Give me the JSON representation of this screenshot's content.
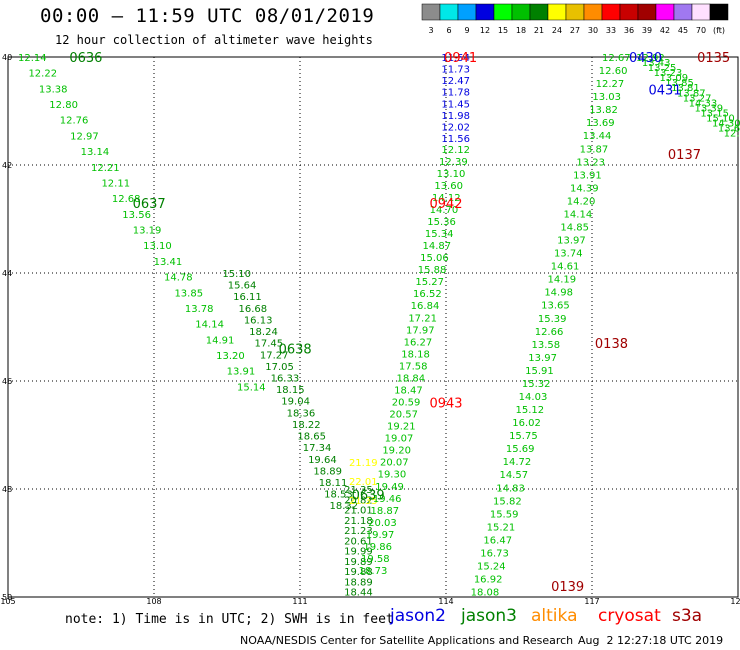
{
  "header": {
    "title": "00:00 – 11:59 UTC 08/01/2019",
    "subtitle": "12 hour collection of altimeter wave heights"
  },
  "colorbar": {
    "labels": [
      "3",
      "6",
      "9",
      "12",
      "15",
      "18",
      "21",
      "24",
      "27",
      "30",
      "33",
      "36",
      "39",
      "42",
      "45",
      "70",
      "(ft)"
    ],
    "colors": [
      "#8c8c8c",
      "#00e8e8",
      "#00a0ff",
      "#0000e0",
      "#00ff00",
      "#00c000",
      "#008000",
      "#ffff00",
      "#e8c000",
      "#ff8c00",
      "#ff0000",
      "#c80000",
      "#a00000",
      "#ff00ff",
      "#a078f0",
      "#ffe0ff",
      "#000000"
    ]
  },
  "map": {
    "lon_ticks": [
      "105",
      "108",
      "111",
      "114",
      "117",
      "120"
    ],
    "lat_ticks": [
      "40",
      "42",
      "44",
      "46",
      "48",
      "50"
    ],
    "grid": "dotted"
  },
  "chart_data": {
    "type": "scatter",
    "xlabel": "",
    "ylabel": "",
    "xlim": [
      105,
      120
    ],
    "ylim": [
      50,
      40
    ],
    "series": [
      {
        "name": "jason2",
        "color": "#0000e0"
      },
      {
        "name": "jason3",
        "color": "#008000"
      },
      {
        "name": "altika",
        "color": "#ff8c00"
      },
      {
        "name": "cryosat",
        "color": "#ff0000"
      },
      {
        "name": "s3a",
        "color": "#a00000"
      }
    ],
    "time_labels": [
      {
        "text": "0636",
        "x": 106.6,
        "y": 40.0,
        "color": "#008000"
      },
      {
        "text": "0637",
        "x": 107.9,
        "y": 42.7,
        "color": "#008000"
      },
      {
        "text": "0638",
        "x": 110.9,
        "y": 45.4,
        "color": "#008000"
      },
      {
        "text": "0639",
        "x": 112.4,
        "y": 48.1,
        "color": "#008000"
      },
      {
        "text": "0941",
        "x": 114.3,
        "y": 40.0,
        "color": "#ff0000"
      },
      {
        "text": "0942",
        "x": 114.0,
        "y": 42.7,
        "color": "#ff0000"
      },
      {
        "text": "0943",
        "x": 114.0,
        "y": 46.4,
        "color": "#ff0000"
      },
      {
        "text": "0430",
        "x": 118.1,
        "y": 40.0,
        "color": "#0000e0"
      },
      {
        "text": "0431",
        "x": 118.5,
        "y": 40.6,
        "color": "#0000e0"
      },
      {
        "text": "0135",
        "x": 119.5,
        "y": 40.0,
        "color": "#a00000"
      },
      {
        "text": "0137",
        "x": 118.9,
        "y": 41.8,
        "color": "#a00000"
      },
      {
        "text": "0138",
        "x": 117.4,
        "y": 45.3,
        "color": "#a00000"
      },
      {
        "text": "0139",
        "x": 116.5,
        "y": 49.8,
        "color": "#a00000"
      }
    ],
    "tracks": [
      {
        "satellite": "jason3",
        "x0": 105.5,
        "y0": 40.0,
        "x1": 110.0,
        "y1": 46.1,
        "color": "#00c000",
        "values": [
          "12.14",
          "12.22",
          "13.38",
          "12.80",
          "12.76",
          "12.97",
          "13.14",
          "12.21",
          "12.11",
          "12.68",
          "13.56",
          "13.19",
          "13.10",
          "13.41",
          "14.78",
          "13.85",
          "13.78",
          "14.14",
          "14.91",
          "13.20",
          "13.91",
          "15.14"
        ]
      },
      {
        "satellite": "jason3",
        "x0": 109.7,
        "y0": 44.0,
        "x1": 111.9,
        "y1": 48.3,
        "color": "#008000",
        "values": [
          "15.10",
          "15.64",
          "16.11",
          "16.68",
          "16.13",
          "18.24",
          "17.45",
          "17.27",
          "17.05",
          "16.33",
          "18.15",
          "19.04",
          "18.36",
          "18.22",
          "18.65",
          "17.34",
          "19.64",
          "18.89",
          "18.11",
          "18.53",
          "18.32"
        ]
      },
      {
        "satellite": "jason3",
        "x0": 112.2,
        "y0": 48.0,
        "x1": 112.2,
        "y1": 49.9,
        "color": "#008000",
        "values": [
          "21.35",
          "20.82",
          "21.01",
          "21.18",
          "21.23",
          "20.61",
          "19.99",
          "19.89",
          "19.88",
          "18.89",
          "18.44"
        ]
      },
      {
        "satellite": "jason3",
        "x0": 112.3,
        "y0": 47.5,
        "x1": 112.3,
        "y1": 48.2,
        "color": "#ffff00",
        "values": [
          "21.19",
          "22.01",
          "21.35"
        ]
      },
      {
        "satellite": "jason2",
        "x0": 114.2,
        "y0": 40.0,
        "x1": 114.2,
        "y1": 41.5,
        "color": "#0000e0",
        "values": [
          "11.54",
          "11.73",
          "12.47",
          "11.78",
          "11.45",
          "11.98",
          "12.02",
          "11.56"
        ]
      },
      {
        "satellite": "cryosat",
        "x0": 114.2,
        "y0": 41.7,
        "x1": 112.5,
        "y1": 49.5,
        "color": "#00c000",
        "values": [
          "12.12",
          "12.39",
          "13.10",
          "13.60",
          "14.12",
          "14.70",
          "15.36",
          "15.34",
          "14.87",
          "15.06",
          "15.88",
          "15.27",
          "16.52",
          "16.84",
          "17.21",
          "17.97",
          "16.27",
          "18.18",
          "17.58",
          "18.84",
          "18.47",
          "20.59",
          "20.57",
          "19.21",
          "19.07",
          "19.20",
          "20.07",
          "19.30",
          "19.49",
          "19.46",
          "18.87",
          "20.03",
          "19.97",
          "19.86",
          "19.58",
          "18.73"
        ]
      },
      {
        "satellite": "s3a",
        "x0": 117.5,
        "y0": 40.0,
        "x1": 114.8,
        "y1": 49.9,
        "color": "#00c000",
        "values": [
          "12.67",
          "12.60",
          "12.27",
          "13.03",
          "13.82",
          "13.69",
          "13.44",
          "13.87",
          "13.23",
          "13.91",
          "14.39",
          "14.20",
          "14.14",
          "14.85",
          "13.97",
          "13.74",
          "14.61",
          "14.19",
          "14.98",
          "13.65",
          "15.39",
          "12.66",
          "13.58",
          "13.97",
          "15.91",
          "15.32",
          "14.03",
          "15.12",
          "16.02",
          "15.75",
          "15.69",
          "14.72",
          "14.57",
          "14.83",
          "15.82",
          "15.59",
          "15.21",
          "16.47",
          "16.73",
          "15.24",
          "16.92",
          "18.08"
        ]
      },
      {
        "satellite": "s3a",
        "x0": 118.2,
        "y0": 40.0,
        "x1": 120.0,
        "y1": 41.4,
        "color": "#00c000",
        "values": [
          "12.92",
          "13.43",
          "13.25",
          "13.23",
          "13.09",
          "13.85",
          "13.81",
          "13.87",
          "13.27",
          "14.33",
          "13.39",
          "13.15",
          "15.10",
          "14.30",
          "13.65",
          "12.93"
        ]
      }
    ]
  },
  "legend": {
    "note": "note: 1) Time is in UTC; 2) SWH is in feet",
    "sats": [
      {
        "name": "jason2",
        "color": "#0000e0"
      },
      {
        "name": "jason3",
        "color": "#008000"
      },
      {
        "name": "altika",
        "color": "#ff8c00"
      },
      {
        "name": "cryosat",
        "color": "#ff0000"
      },
      {
        "name": "s3a",
        "color": "#a00000"
      }
    ]
  },
  "footer": {
    "credit": "NOAA/NESDIS Center for Satellite Applications and Research",
    "date": "Aug  2 12:27:18 UTC 2019"
  }
}
